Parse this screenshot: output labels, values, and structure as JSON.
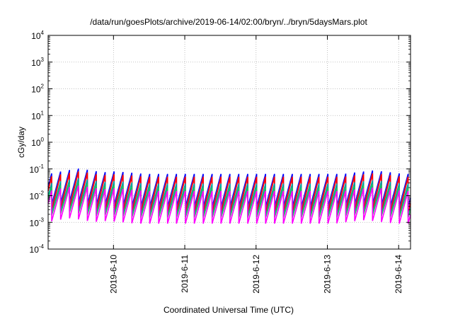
{
  "chart_data": {
    "type": "line",
    "title": "/data/run/goesPlots/archive/2019-06-14/02:00/bryn/../bryn/5daysMars.plot",
    "xlabel": "Coordinated Universal Time (UTC)",
    "ylabel": "cGy/day",
    "yscale": "log",
    "ylim": [
      0.0001,
      10000
    ],
    "xlim": [
      "2019-06-09T02:00",
      "2019-06-14T04:00"
    ],
    "x_ticks": [
      "2019-6-10",
      "2019-6-11",
      "2019-6-12",
      "2019-6-13",
      "2019-6-14"
    ],
    "y_ticks": [
      {
        "value": 0.0001,
        "base": "10",
        "exp": "-4"
      },
      {
        "value": 0.001,
        "base": "10",
        "exp": "-3"
      },
      {
        "value": 0.01,
        "base": "10",
        "exp": "-2"
      },
      {
        "value": 0.1,
        "base": "10",
        "exp": "-1"
      },
      {
        "value": 1,
        "base": "10",
        "exp": "0"
      },
      {
        "value": 10,
        "base": "10",
        "exp": "1"
      },
      {
        "value": 100,
        "base": "10",
        "exp": "2"
      },
      {
        "value": 1000,
        "base": "10",
        "exp": "3"
      },
      {
        "value": 10000,
        "base": "10",
        "exp": "4"
      }
    ],
    "grid": true,
    "legend": false,
    "sawtooth": {
      "period_hours": 3,
      "peak_series": [
        {
          "color": "#0000ff",
          "peak": 0.065,
          "trough": 0.0038
        },
        {
          "color": "#7b3f8f",
          "peak": 0.052,
          "trough": 0.003
        },
        {
          "color": "#ff0000",
          "peak": 0.05,
          "trough": 0.0022
        },
        {
          "color": "#00a0a0",
          "peak": 0.028,
          "trough": 0.0017
        },
        {
          "color": "#20c060",
          "peak": 0.02,
          "trough": 0.0015
        },
        {
          "color": "#ff00ff",
          "peak": 0.015,
          "trough": 0.0009
        }
      ],
      "peak_dates": [
        {
          "day": "2019-06-09T11:00",
          "factor": 1.6
        },
        {
          "day": "2019-06-09T23:00",
          "factor": 1.25
        },
        {
          "day": "2019-06-13T14:00",
          "factor": 1.35
        }
      ]
    }
  }
}
